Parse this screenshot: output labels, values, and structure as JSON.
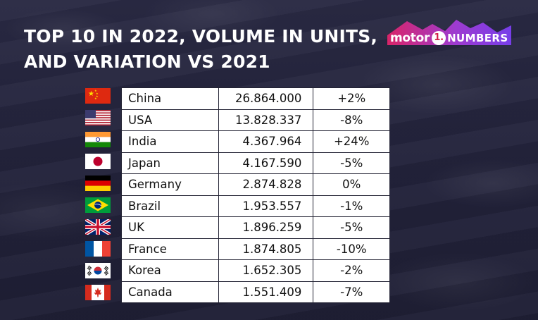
{
  "header": {
    "title_line1": "TOP 10 IN 2022, VOLUME IN UNITS,",
    "title_line2": "AND VARIATION VS 2021"
  },
  "logo": {
    "brand": "motor",
    "badge": "1.",
    "product": "NUMBERS"
  },
  "colors": {
    "background": "#23233a",
    "logo_accent_1": "#e2246a",
    "logo_accent_2": "#7b3ff2"
  },
  "rows": [
    {
      "flag": "china-flag",
      "country": "China",
      "volume": "26.864.000",
      "variation": "+2%"
    },
    {
      "flag": "usa-flag",
      "country": "USA",
      "volume": "13.828.337",
      "variation": "-8%"
    },
    {
      "flag": "india-flag",
      "country": "India",
      "volume": "4.367.964",
      "variation": "+24%"
    },
    {
      "flag": "japan-flag",
      "country": "Japan",
      "volume": "4.167.590",
      "variation": "-5%"
    },
    {
      "flag": "germany-flag",
      "country": "Germany",
      "volume": "2.874.828",
      "variation": "0%"
    },
    {
      "flag": "brazil-flag",
      "country": "Brazil",
      "volume": "1.953.557",
      "variation": "-1%"
    },
    {
      "flag": "uk-flag",
      "country": "UK",
      "volume": "1.896.259",
      "variation": "-5%"
    },
    {
      "flag": "france-flag",
      "country": "France",
      "volume": "1.874.805",
      "variation": "-10%"
    },
    {
      "flag": "korea-flag",
      "country": "Korea",
      "volume": "1.652.305",
      "variation": "-2%"
    },
    {
      "flag": "canada-flag",
      "country": "Canada",
      "volume": "1.551.409",
      "variation": "-7%"
    }
  ]
}
